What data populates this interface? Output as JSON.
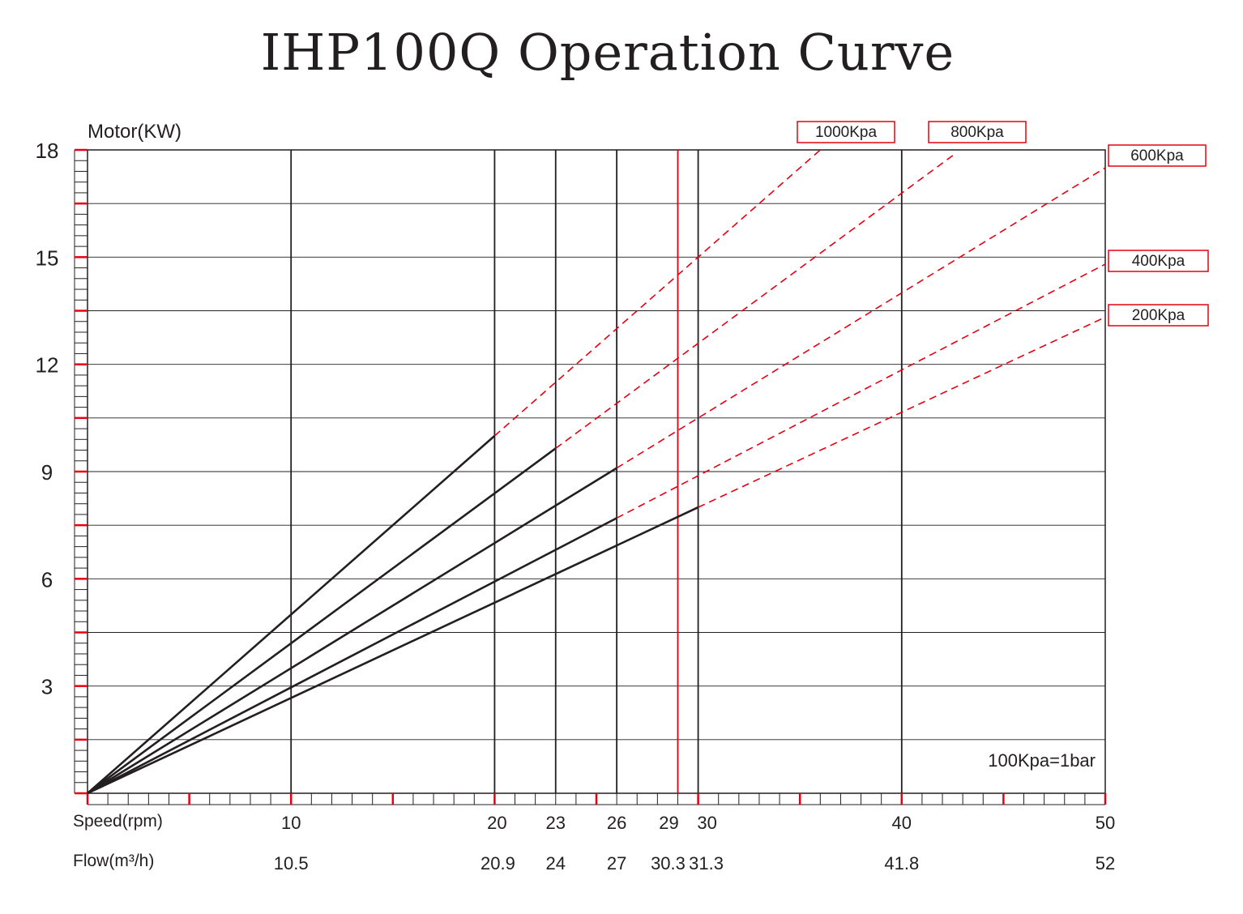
{
  "chart_data": {
    "type": "line",
    "title": "IHP100Q Operation Curve",
    "ylabel": "Motor(KW)",
    "xlabel": "Speed(rpm)",
    "flow_label": "Flow(m³/h)",
    "ylim": [
      0,
      18
    ],
    "xlim": [
      0,
      50
    ],
    "y_ticks": [
      3,
      6,
      9,
      12,
      15,
      18
    ],
    "y_tick_labels": [
      "3",
      "6",
      "9",
      "12",
      "15",
      "18"
    ],
    "x_ticks": [
      10,
      20,
      23,
      26,
      29,
      30,
      40,
      50
    ],
    "x_tick_labels": [
      "10",
      "20",
      "23",
      "26",
      "29",
      "30",
      "40",
      "50"
    ],
    "flow_ticks": [
      {
        "speed": 10,
        "flow": "10.5"
      },
      {
        "speed": 20,
        "flow": "20.9"
      },
      {
        "speed": 23,
        "flow": "24"
      },
      {
        "speed": 26,
        "flow": "27"
      },
      {
        "speed": 29,
        "flow": "30.3"
      },
      {
        "speed": 30,
        "flow": "31.3"
      },
      {
        "speed": 40,
        "flow": "41.8"
      },
      {
        "speed": 50,
        "flow": "52"
      }
    ],
    "highlight_speed": 29,
    "grid": true,
    "note": "100Kpa=1bar",
    "series": [
      {
        "name": "1000Kpa",
        "solid_end": 20,
        "dashed_end": 36,
        "values_at_solid_end": 10.0,
        "slope": 0.5
      },
      {
        "name": "800Kpa",
        "solid_end": 23,
        "dashed_end": 42.7,
        "values_at_solid_end": 9.65,
        "slope": 0.42
      },
      {
        "name": "600Kpa",
        "solid_end": 26,
        "dashed_end": 50,
        "values_at_solid_end": 9.1,
        "slope": 0.35
      },
      {
        "name": "400Kpa",
        "solid_end": 26,
        "dashed_end": 50,
        "values_at_solid_end": 7.7,
        "slope": 0.296
      },
      {
        "name": "200Kpa",
        "solid_end": 30,
        "dashed_end": 50,
        "values_at_solid_end": 8.0,
        "slope": 0.266
      }
    ],
    "colors": {
      "axis": "#231f20",
      "grid": "#231f20",
      "dashed": "#e60012",
      "highlight": "#e60012",
      "legend_border": "#e60012"
    }
  }
}
